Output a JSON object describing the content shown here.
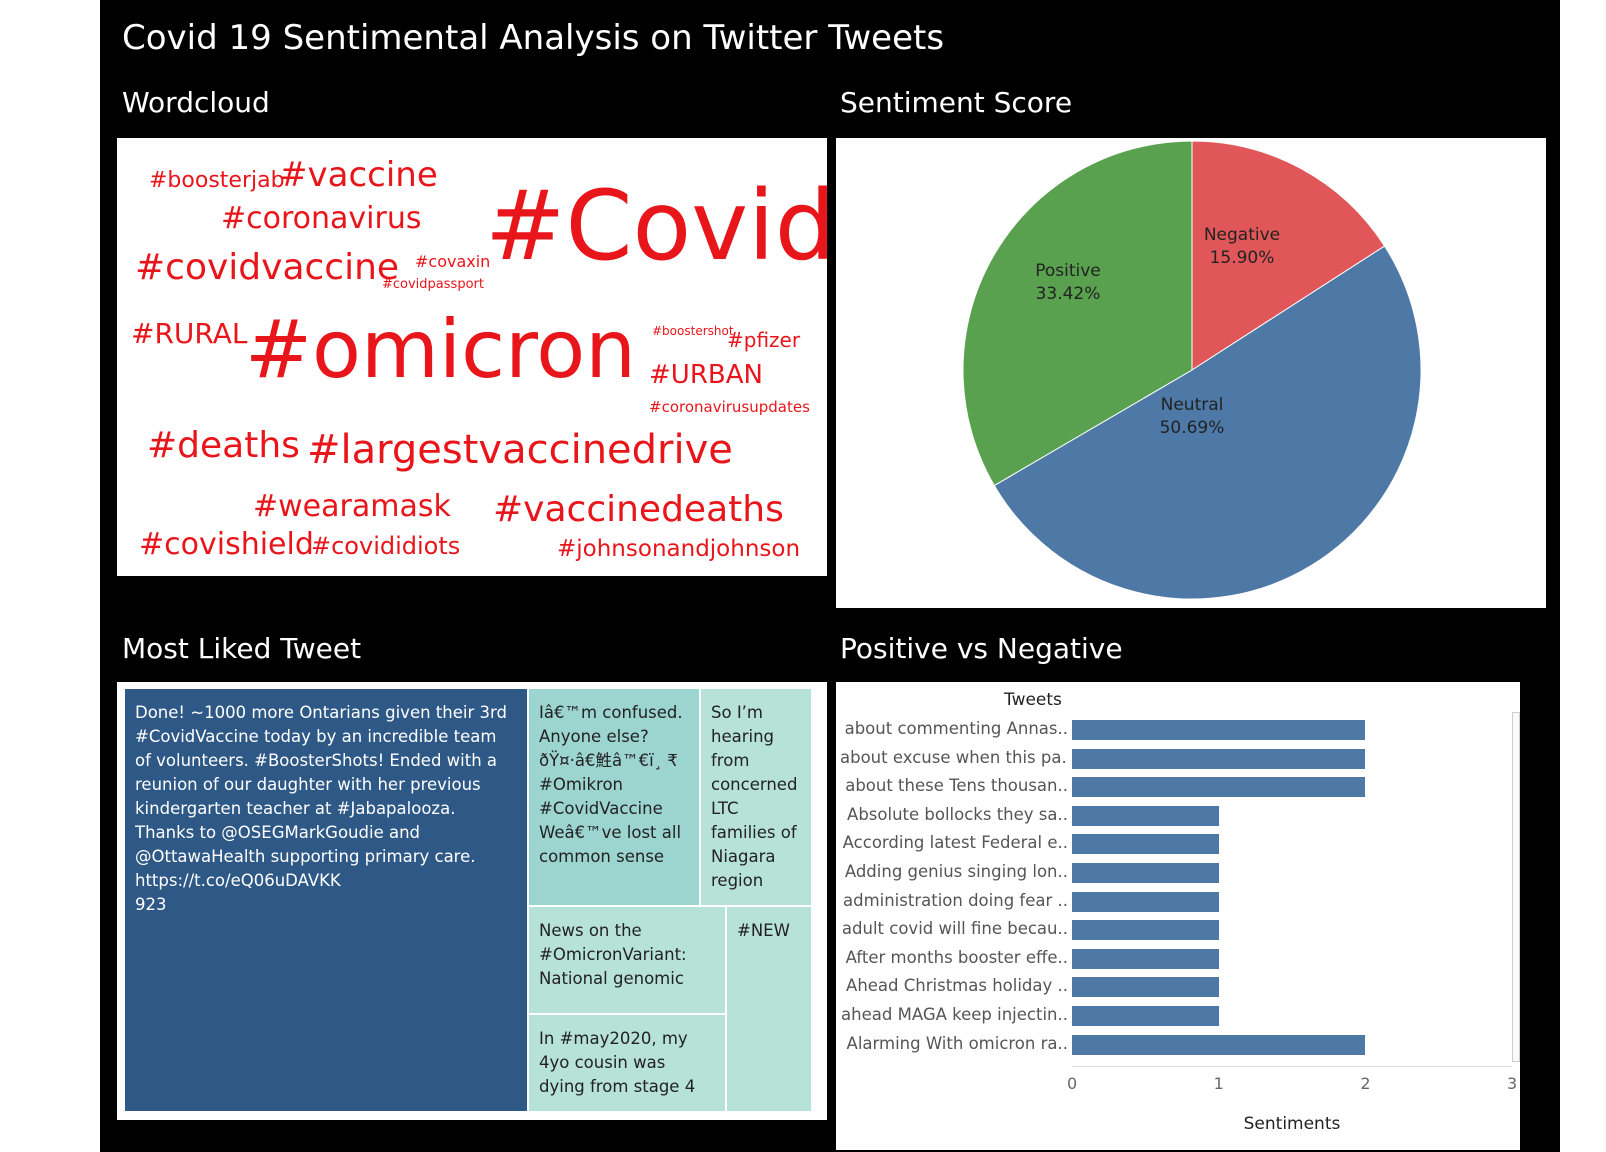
{
  "dashboard": {
    "title": "Covid 19 Sentimental Analysis on Twitter Tweets"
  },
  "sections": {
    "wordcloud": "Wordcloud",
    "sentiment": "Sentiment Score",
    "most_liked": "Most Liked Tweet",
    "pos_neg": "Positive vs Negative"
  },
  "wordcloud": {
    "color": "#e8151b",
    "words": [
      "#boosterjab",
      "#vaccine",
      "#coronavirus",
      "#Covid",
      "#covidvaccine",
      "#covaxin",
      "#covidpassport",
      "#RURAL",
      "#omicron",
      "#boostershot",
      "#pfizer",
      "#URBAN",
      "#coronavirusupdates",
      "#deaths",
      "#largestvaccinedrive",
      "#wearamask",
      "#vaccinedeaths",
      "#covishield",
      "#covididiots",
      "#johnsonandjohnson"
    ]
  },
  "treemap": {
    "cells": [
      "Done! ~1000 more Ontarians given their 3rd #CovidVaccine today by an incredible team of volunteers. #BoosterShots! Ended with a reunion of our daughter with her previous kindergarten teacher at #Jabapalooza. Thanks to @OSEGMarkGoudie and @OttawaHealth supporting primary care.\nhttps://t.co/eQ06uDAVKK\n923",
      "Iâ€™m confused. Anyone else? ðŸ¤·â€鮏â™€ï¸ ₹ #Omikron #CovidVaccine Weâ€™ve lost all common sense",
      "So I’m hearing from concerned LTC families of Niagara region",
      "News on the #OmicronVariant: National genomic",
      "#NEW",
      "In #may2020, my 4yo cousin was dying from stage 4"
    ]
  },
  "chart_data": [
    {
      "type": "pie",
      "title": "Sentiment Score",
      "slices": [
        {
          "label": "Negative",
          "value": 15.9,
          "display": "15.90%",
          "color": "#e15759"
        },
        {
          "label": "Neutral",
          "value": 50.69,
          "display": "50.69%",
          "color": "#4e79a7"
        },
        {
          "label": "Positive",
          "value": 33.42,
          "display": "33.42%",
          "color": "#59a14f"
        }
      ]
    },
    {
      "type": "bar",
      "orientation": "horizontal",
      "title": "Positive vs Negative",
      "ylabel": "Tweets",
      "xlabel": "Sentiments",
      "xlim": [
        0,
        3
      ],
      "xticks": [
        "0",
        "1",
        "2",
        "3"
      ],
      "color": "#4e79a7",
      "categories": [
        "about commenting Annas..",
        "about excuse when this pa..",
        "about these Tens thousan..",
        "Absolute bollocks they sa..",
        "According latest Federal e..",
        "Adding genius singing lon..",
        "administration doing fear ..",
        "adult covid will fine becau..",
        "After months booster effe..",
        "Ahead Christmas holiday ..",
        "ahead MAGA keep injectin..",
        "Alarming With omicron ra.."
      ],
      "values": [
        2,
        2,
        2,
        1,
        1,
        1,
        1,
        1,
        1,
        1,
        1,
        2
      ]
    }
  ]
}
